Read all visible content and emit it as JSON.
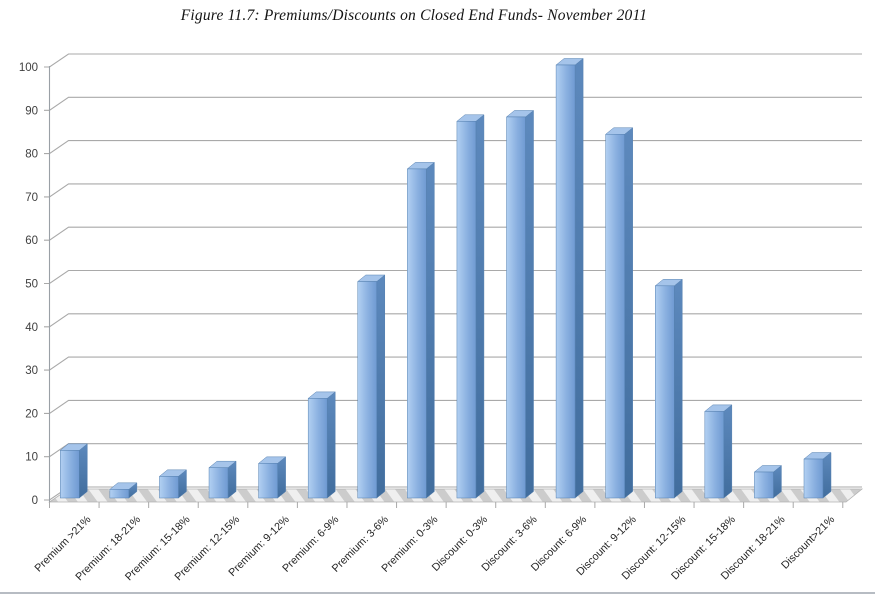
{
  "title": "Figure 11.7: Premiums/Discounts on Closed End Funds- November 2011",
  "chart_data": {
    "type": "bar",
    "style": "3d-column",
    "title": "Figure 11.7: Premiums/Discounts on Closed End Funds- November 2011",
    "categories": [
      "Premium >21%",
      "Premium: 18-21%",
      "Premium: 15-18%",
      "Premium: 12-15%",
      "Premium: 9-12%",
      "Premium: 6-9%",
      "Premium: 3-6%",
      "Premium: 0-3%",
      "Discount: 0-3%",
      "Discount: 3-6%",
      "Discount: 6-9%",
      "Discount: 9-12%",
      "Discount: 12-15%",
      "Discount: 15-18%",
      "Discount: 18-21%",
      "Discount>21%"
    ],
    "values": [
      11,
      2,
      5,
      7,
      8,
      23,
      50,
      76,
      87,
      88,
      100,
      84,
      49,
      20,
      6,
      9
    ],
    "xlabel": "",
    "ylabel": "",
    "ylim": [
      0,
      100
    ],
    "yticks": [
      0,
      10,
      20,
      30,
      40,
      50,
      60,
      70,
      80,
      90,
      100
    ],
    "grid": true,
    "legend": false,
    "colors": {
      "bar_front_light": "#b2d0f2",
      "bar_front_mid": "#8ab0e0",
      "bar_front_dark": "#6f9ad2",
      "bar_side_top": "#5d89bd",
      "bar_side_bottom": "#416d9d",
      "bar_top_face": "#a5c4ea",
      "bar_outline": "#5580b0",
      "gridline": "#a9a9a9",
      "axis": "#9aa0a6",
      "tick_label": "#3f3f3f",
      "category_label": "#262626",
      "floor_light": "#efefef",
      "floor_dark": "#cccccc",
      "background": "#ffffff"
    }
  }
}
